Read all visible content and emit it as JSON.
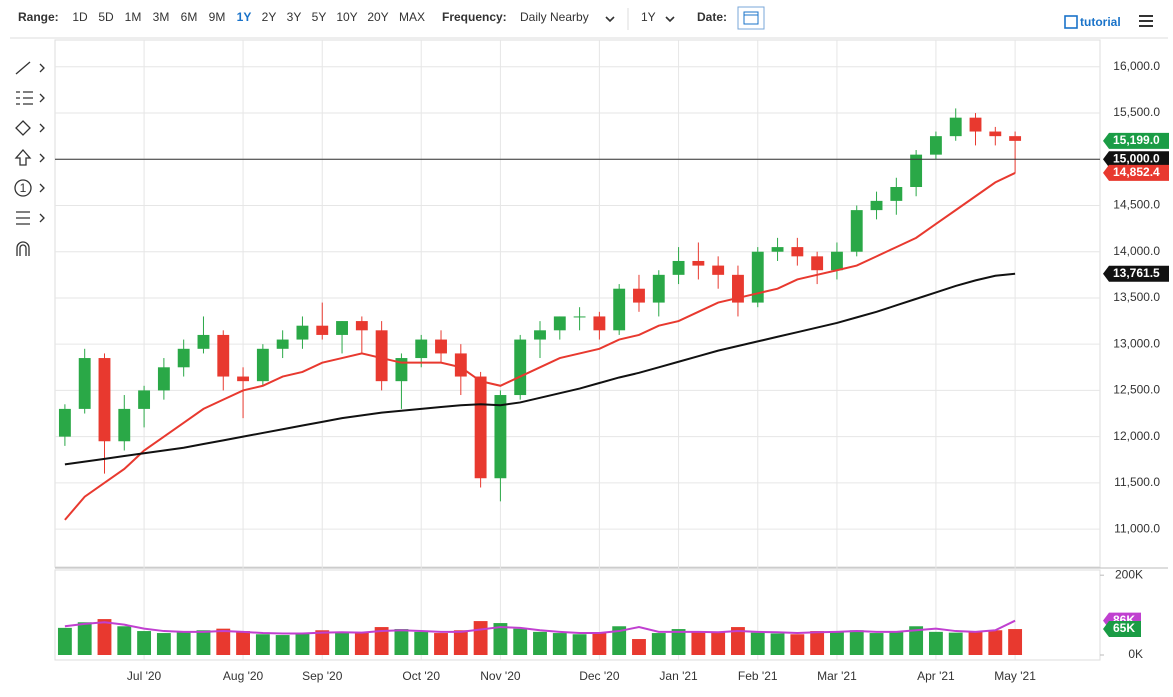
{
  "toolbar": {
    "range_label": "Range:",
    "ranges": [
      "1D",
      "5D",
      "1M",
      "3M",
      "6M",
      "9M",
      "1Y",
      "2Y",
      "3Y",
      "5Y",
      "10Y",
      "20Y",
      "MAX"
    ],
    "active_range_index": 6,
    "active_color": "#1a73c9",
    "frequency_label": "Frequency:",
    "frequency": "Daily Nearby",
    "period": "1Y",
    "date_label": "Date:",
    "tutorial": "tutorial",
    "icon_number": "1"
  },
  "chart_data": [
    {
      "type": "candlestick",
      "categories": [
        null,
        null,
        null,
        null,
        "Jul '20",
        null,
        null,
        null,
        null,
        "Aug '20",
        null,
        null,
        null,
        "Sep '20",
        null,
        null,
        null,
        null,
        "Oct '20",
        null,
        null,
        null,
        "Nov '20",
        null,
        null,
        null,
        null,
        "Dec '20",
        null,
        null,
        null,
        "Jan '21",
        null,
        null,
        null,
        "Feb '21",
        null,
        null,
        null,
        "Mar '21",
        null,
        null,
        null,
        null,
        "Apr '21",
        null,
        null,
        null,
        "May '21"
      ],
      "open": [
        12000,
        12300,
        12850,
        11950,
        12300,
        12500,
        12750,
        12950,
        13100,
        12650,
        12600,
        12950,
        13050,
        13200,
        13100,
        13250,
        13150,
        12600,
        12850,
        13050,
        12900,
        12650,
        11550,
        12450,
        13050,
        13150,
        13300,
        13300,
        13150,
        13600,
        13450,
        13750,
        13900,
        13850,
        13750,
        13450,
        14000,
        14050,
        13950,
        13800,
        14000,
        14450,
        14550,
        14700,
        15050,
        15250,
        15450,
        15300,
        15250
      ],
      "high": [
        12350,
        12950,
        12900,
        12450,
        12550,
        12850,
        13050,
        13300,
        13150,
        12750,
        13000,
        13150,
        13300,
        13450,
        13250,
        13300,
        13250,
        12900,
        13100,
        13150,
        13000,
        12700,
        12500,
        13100,
        13250,
        13300,
        13400,
        13350,
        13650,
        13750,
        13800,
        14050,
        14100,
        13950,
        13850,
        14050,
        14150,
        14150,
        14000,
        14100,
        14500,
        14650,
        14800,
        15100,
        15300,
        15550,
        15500,
        15350,
        15300
      ],
      "low": [
        11900,
        12250,
        11600,
        11850,
        12100,
        12400,
        12650,
        12900,
        12500,
        12200,
        12550,
        12850,
        12950,
        13050,
        12900,
        12900,
        12500,
        12300,
        12750,
        12800,
        12450,
        11450,
        11300,
        12400,
        12850,
        13050,
        13150,
        13050,
        13100,
        13350,
        13300,
        13650,
        13700,
        13600,
        13300,
        13400,
        13900,
        13850,
        13650,
        13700,
        13950,
        14350,
        14400,
        14600,
        15000,
        15200,
        15150,
        15150,
        14850
      ],
      "close": [
        12300,
        12850,
        11950,
        12300,
        12500,
        12750,
        12950,
        13100,
        12650,
        12600,
        12950,
        13050,
        13200,
        13100,
        13250,
        13150,
        12600,
        12850,
        13050,
        12900,
        12650,
        11550,
        12450,
        13050,
        13150,
        13300,
        13300,
        13150,
        13600,
        13450,
        13750,
        13900,
        13850,
        13750,
        13450,
        14000,
        14050,
        13950,
        13800,
        14000,
        14450,
        14550,
        14700,
        15050,
        15250,
        15450,
        15300,
        15250,
        15199
      ],
      "up_color": "#2aa847",
      "down_color": "#e8392f",
      "series": [
        {
          "color": "#e8392f",
          "values": [
            11100,
            11350,
            11500,
            11650,
            11850,
            12000,
            12150,
            12300,
            12400,
            12500,
            12550,
            12650,
            12700,
            12800,
            12850,
            12900,
            12850,
            12800,
            12800,
            12800,
            12750,
            12600,
            12550,
            12650,
            12750,
            12850,
            12900,
            12950,
            13050,
            13100,
            13200,
            13250,
            13350,
            13450,
            13500,
            13550,
            13600,
            13700,
            13750,
            13800,
            13850,
            13950,
            14050,
            14150,
            14300,
            14450,
            14600,
            14750,
            14852.4
          ]
        },
        {
          "color": "#111111",
          "values": [
            11700,
            11730,
            11760,
            11790,
            11820,
            11850,
            11880,
            11920,
            11960,
            12000,
            12040,
            12080,
            12120,
            12160,
            12200,
            12230,
            12260,
            12280,
            12300,
            12320,
            12340,
            12350,
            12340,
            12370,
            12420,
            12470,
            12520,
            12580,
            12640,
            12690,
            12750,
            12810,
            12870,
            12930,
            12980,
            13030,
            13080,
            13130,
            13180,
            13230,
            13290,
            13350,
            13420,
            13490,
            13560,
            13630,
            13690,
            13740,
            13761.5
          ]
        }
      ],
      "markers": [
        {
          "value": 15199,
          "label": "15,199.0",
          "color": "#1a9c45"
        },
        {
          "value": 15000,
          "label": "15,000.0",
          "color": "#111111",
          "line": true
        },
        {
          "value": 14852.4,
          "label": "14,852.4",
          "color": "#e8392f"
        },
        {
          "value": 13761.5,
          "label": "13,761.5",
          "color": "#111111"
        }
      ],
      "ylim": [
        10590,
        16290
      ],
      "yticks": [
        {
          "value": 11000,
          "label": "11,000.0"
        },
        {
          "value": 11500,
          "label": "11,500.0"
        },
        {
          "value": 12000,
          "label": "12,000.0"
        },
        {
          "value": 12500,
          "label": "12,500.0"
        },
        {
          "value": 13000,
          "label": "13,000.0"
        },
        {
          "value": 13500,
          "label": "13,500.0"
        },
        {
          "value": 14000,
          "label": "14,000.0"
        },
        {
          "value": 14500,
          "label": "14,500.0"
        },
        {
          "value": 15000,
          "label": "15,000.0"
        },
        {
          "value": 15500,
          "label": "15,500.0"
        },
        {
          "value": 16000,
          "label": "16,000.0"
        }
      ],
      "grid": true
    },
    {
      "type": "bar",
      "values": [
        68000,
        82000,
        90000,
        72000,
        60000,
        55000,
        58000,
        62000,
        66000,
        60000,
        52000,
        50000,
        55000,
        62000,
        58000,
        56000,
        70000,
        65000,
        58000,
        55000,
        62000,
        85000,
        80000,
        66000,
        58000,
        55000,
        52000,
        56000,
        72000,
        40000,
        55000,
        65000,
        60000,
        58000,
        70000,
        56000,
        54000,
        52000,
        60000,
        58000,
        62000,
        55000,
        60000,
        72000,
        58000,
        56000,
        60000,
        62000,
        65000
      ],
      "series": [
        {
          "color": "#c040d0",
          "values": [
            72000,
            78000,
            82000,
            76000,
            66000,
            60000,
            58000,
            58000,
            60000,
            58000,
            55000,
            54000,
            54000,
            56000,
            57000,
            56000,
            60000,
            62000,
            60000,
            58000,
            58000,
            64000,
            70000,
            68000,
            62000,
            58000,
            55000,
            55000,
            60000,
            70000,
            58000,
            58000,
            58000,
            57000,
            60000,
            58000,
            57000,
            55000,
            57000,
            58000,
            60000,
            58000,
            58000,
            62000,
            66000,
            60000,
            58000,
            62000,
            86000
          ]
        }
      ],
      "markers": [
        {
          "value": 86000,
          "label": "86K",
          "color": "#c040d0"
        },
        {
          "value": 65000,
          "label": "65K",
          "color": "#1a9c45"
        }
      ],
      "ylim": [
        0,
        213000
      ],
      "yticks": [
        {
          "value": 0,
          "label": "0K"
        },
        {
          "value": 200000,
          "label": "200K"
        }
      ]
    }
  ]
}
